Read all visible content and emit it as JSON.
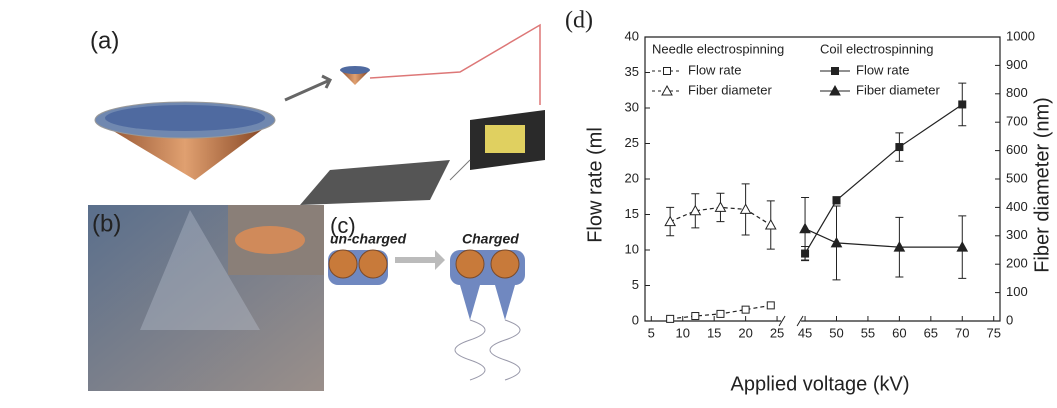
{
  "panels": {
    "a": "(a)",
    "b": "(b)",
    "c": "(c)",
    "uncharged": "un-charged",
    "charged": "Charged"
  },
  "chart_data": {
    "type": "line",
    "panel_label": "(d)",
    "x_label": "Applied voltage (kV)",
    "y_label": "Flow rate (ml",
    "y2_label": "Fiber diameter (nm)",
    "xlim": [
      4,
      76
    ],
    "xticks": [
      5,
      10,
      15,
      20,
      25,
      45,
      50,
      55,
      60,
      65,
      70,
      75
    ],
    "ylim": [
      0,
      40
    ],
    "yticks": [
      0,
      5,
      10,
      15,
      20,
      25,
      30,
      35,
      40
    ],
    "y2lim": [
      0,
      1000
    ],
    "y2ticks": [
      0,
      100,
      200,
      300,
      400,
      500,
      600,
      700,
      800,
      900,
      1000
    ],
    "series_groups": [
      {
        "name": "Needle electrospinning",
        "series": [
          {
            "name": "Flow rate",
            "color": "#222222",
            "marker": "square",
            "filled": false,
            "dashed": true,
            "x": [
              8,
              12,
              16,
              20,
              24
            ],
            "values": [
              0.3,
              0.7,
              1.0,
              1.6,
              2.2
            ]
          },
          {
            "name": "Fiber diameter",
            "color": "#222222",
            "marker": "triangle",
            "filled": false,
            "dashed": true,
            "axis": "y2",
            "x": [
              8,
              12,
              16,
              20,
              24
            ],
            "values": [
              350,
              388,
              400,
              393,
              338
            ],
            "errors": [
              50,
              60,
              50,
              90,
              85
            ]
          }
        ]
      },
      {
        "name": "Coil electrospinning",
        "series": [
          {
            "name": "Flow rate",
            "color": "#222222",
            "marker": "square",
            "filled": true,
            "dashed": false,
            "x": [
              45,
              50,
              60,
              70
            ],
            "values": [
              9.5,
              17,
              24.5,
              30.5
            ],
            "errors": [
              1,
              0.5,
              2,
              3
            ]
          },
          {
            "name": "Fiber diameter",
            "color": "#222222",
            "marker": "triangle",
            "filled": true,
            "dashed": false,
            "axis": "y2",
            "x": [
              45,
              50,
              60,
              70
            ],
            "values": [
              325,
              275,
              260,
              260
            ],
            "errors": [
              110,
              130,
              105,
              110
            ]
          }
        ]
      }
    ]
  }
}
